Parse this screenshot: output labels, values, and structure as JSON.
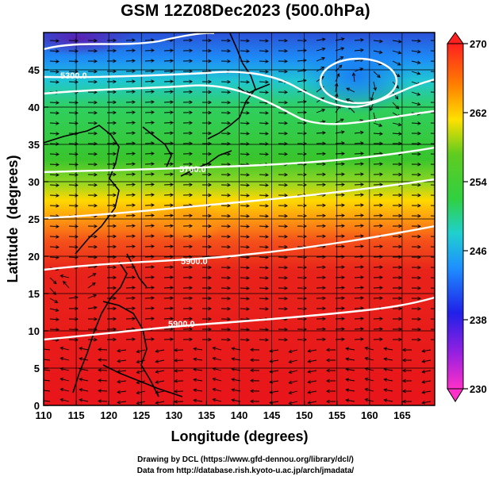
{
  "title": "GSM 12Z08Dec2023 (500.0hPa)",
  "axes": {
    "xlabel": "Longitude (degrees)",
    "ylabel": "Latitude  (degrees)",
    "xlim": [
      110,
      170
    ],
    "ylim": [
      0,
      50
    ],
    "xticks": [
      "110",
      "115",
      "120",
      "125",
      "130",
      "135",
      "140",
      "145",
      "150",
      "155",
      "160",
      "165"
    ],
    "yticks": [
      "0",
      "5",
      "10",
      "15",
      "20",
      "25",
      "30",
      "35",
      "40",
      "45"
    ]
  },
  "colorbar": {
    "min": 230,
    "max": 270,
    "ticks": [
      "230",
      "238",
      "246",
      "254",
      "262",
      "270"
    ]
  },
  "contour_labels": [
    "5300.0",
    "5700.0",
    "5900.0",
    "5900.0"
  ],
  "credits": {
    "line1": "Drawing by DCL (https://www.gfd-dennou.org/library/dcl/)",
    "line2": "Data from http://database.rish.kyoto-u.ac.jp/arch/jmadata/"
  },
  "colors": {
    "cold": "#5a1fb0",
    "cool": "#1e8fff",
    "mid": "#38cc30",
    "warm": "#ffb800",
    "hot": "#e8151a"
  }
}
